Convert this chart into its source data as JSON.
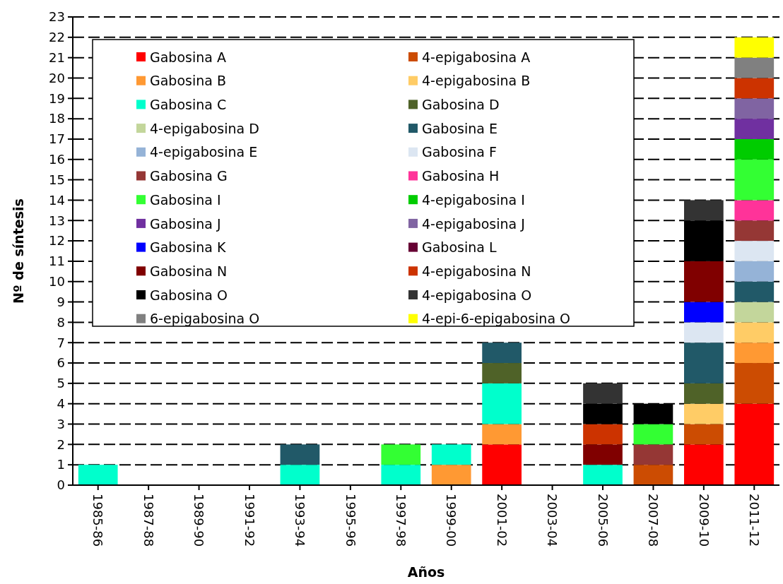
{
  "chart_data": {
    "type": "bar",
    "stacked": true,
    "xlabel": "Años",
    "ylabel": "Nº de síntesis",
    "categories": [
      "1985-86",
      "1987-88",
      "1989-90",
      "1991-92",
      "1993-94",
      "1995-96",
      "1997-98",
      "1999-00",
      "2001-02",
      "2003-04",
      "2005-06",
      "2007-08",
      "2009-10",
      "2011-12"
    ],
    "ylim": [
      0,
      23
    ],
    "yticks": [
      0,
      1,
      2,
      3,
      4,
      5,
      6,
      7,
      8,
      9,
      10,
      11,
      12,
      13,
      14,
      15,
      16,
      17,
      18,
      19,
      20,
      21,
      22,
      23
    ],
    "grid": "y",
    "legend": "top left",
    "series": [
      {
        "name": "Gabosina A",
        "color": "#ff0000",
        "values": [
          0,
          0,
          0,
          0,
          0,
          0,
          0,
          0,
          2,
          0,
          0,
          0,
          2,
          4
        ]
      },
      {
        "name": "4-epigabosina A",
        "color": "#cc4c02",
        "values": [
          0,
          0,
          0,
          0,
          0,
          0,
          0,
          0,
          0,
          0,
          0,
          1,
          1,
          2
        ]
      },
      {
        "name": "Gabosina B",
        "color": "#ff9933",
        "values": [
          0,
          0,
          0,
          0,
          0,
          0,
          0,
          1,
          1,
          0,
          0,
          0,
          0,
          1
        ]
      },
      {
        "name": "4-epigabosina B",
        "color": "#ffcc66",
        "values": [
          0,
          0,
          0,
          0,
          0,
          0,
          0,
          0,
          0,
          0,
          0,
          0,
          1,
          1
        ]
      },
      {
        "name": "Gabosina C",
        "color": "#00ffcc",
        "values": [
          1,
          0,
          0,
          0,
          1,
          0,
          1,
          1,
          2,
          0,
          1,
          0,
          0,
          0
        ]
      },
      {
        "name": "Gabosina D",
        "color": "#4f6228",
        "values": [
          0,
          0,
          0,
          0,
          0,
          0,
          0,
          0,
          1,
          0,
          0,
          0,
          1,
          0
        ]
      },
      {
        "name": "4-epigabosina D",
        "color": "#c3d69b",
        "values": [
          0,
          0,
          0,
          0,
          0,
          0,
          0,
          0,
          0,
          0,
          0,
          0,
          0,
          1
        ]
      },
      {
        "name": "Gabosina E",
        "color": "#215968",
        "values": [
          0,
          0,
          0,
          0,
          1,
          0,
          0,
          0,
          1,
          0,
          0,
          0,
          2,
          1
        ]
      },
      {
        "name": "4-epigabosina E",
        "color": "#95b3d7",
        "values": [
          0,
          0,
          0,
          0,
          0,
          0,
          0,
          0,
          0,
          0,
          0,
          0,
          0,
          1
        ]
      },
      {
        "name": "Gabosina F",
        "color": "#dce6f2",
        "values": [
          0,
          0,
          0,
          0,
          0,
          0,
          0,
          0,
          0,
          0,
          0,
          0,
          1,
          1
        ]
      },
      {
        "name": "Gabosina G",
        "color": "#953735",
        "values": [
          0,
          0,
          0,
          0,
          0,
          0,
          0,
          0,
          0,
          0,
          0,
          1,
          0,
          1
        ]
      },
      {
        "name": "Gabosina H",
        "color": "#ff3399",
        "values": [
          0,
          0,
          0,
          0,
          0,
          0,
          0,
          0,
          0,
          0,
          0,
          0,
          0,
          1
        ]
      },
      {
        "name": "Gabosina I",
        "color": "#33ff33",
        "values": [
          0,
          0,
          0,
          0,
          0,
          0,
          1,
          0,
          0,
          0,
          0,
          1,
          0,
          2
        ]
      },
      {
        "name": "4-epigabosina I",
        "color": "#00cc00",
        "values": [
          0,
          0,
          0,
          0,
          0,
          0,
          0,
          0,
          0,
          0,
          0,
          0,
          0,
          1
        ]
      },
      {
        "name": "Gabosina J",
        "color": "#7030a0",
        "values": [
          0,
          0,
          0,
          0,
          0,
          0,
          0,
          0,
          0,
          0,
          0,
          0,
          0,
          1
        ]
      },
      {
        "name": "4-epigabosina J",
        "color": "#8064a2",
        "values": [
          0,
          0,
          0,
          0,
          0,
          0,
          0,
          0,
          0,
          0,
          0,
          0,
          0,
          1
        ]
      },
      {
        "name": "Gabosina K",
        "color": "#0000ff",
        "values": [
          0,
          0,
          0,
          0,
          0,
          0,
          0,
          0,
          0,
          0,
          0,
          0,
          1,
          0
        ]
      },
      {
        "name": "Gabosina L",
        "color": "#660033",
        "values": [
          0,
          0,
          0,
          0,
          0,
          0,
          0,
          0,
          0,
          0,
          0,
          0,
          0,
          0
        ]
      },
      {
        "name": "Gabosina N",
        "color": "#800000",
        "values": [
          0,
          0,
          0,
          0,
          0,
          0,
          0,
          0,
          0,
          0,
          1,
          0,
          2,
          0
        ]
      },
      {
        "name": "4-epigabosina N",
        "color": "#cc3300",
        "values": [
          0,
          0,
          0,
          0,
          0,
          0,
          0,
          0,
          0,
          0,
          1,
          0,
          0,
          1
        ]
      },
      {
        "name": "Gabosina O",
        "color": "#000000",
        "values": [
          0,
          0,
          0,
          0,
          0,
          0,
          0,
          0,
          0,
          0,
          1,
          1,
          2,
          0
        ]
      },
      {
        "name": "4-epigabosina O",
        "color": "#333333",
        "values": [
          0,
          0,
          0,
          0,
          0,
          0,
          0,
          0,
          0,
          0,
          1,
          0,
          1,
          0
        ]
      },
      {
        "name": "6-epigabosina O",
        "color": "#808080",
        "values": [
          0,
          0,
          0,
          0,
          0,
          0,
          0,
          0,
          0,
          0,
          0,
          0,
          0,
          1
        ]
      },
      {
        "name": "4-epi-6-epigabosina O",
        "color": "#ffff00",
        "values": [
          0,
          0,
          0,
          0,
          0,
          0,
          0,
          0,
          0,
          0,
          0,
          0,
          0,
          1
        ]
      }
    ]
  }
}
